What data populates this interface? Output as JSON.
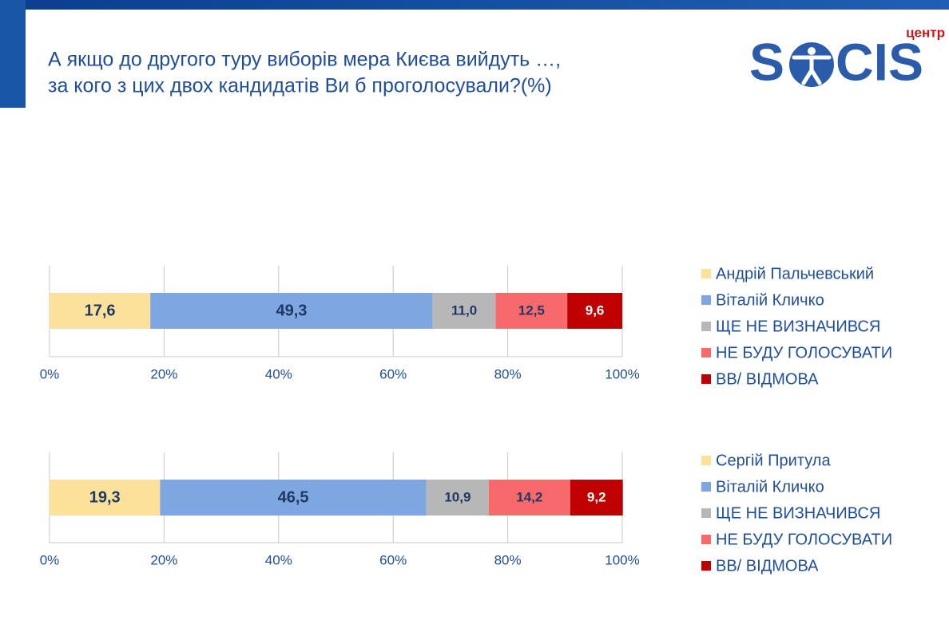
{
  "header": {
    "title_lines": [
      "А якщо до другого туру виборів мера Києва вийдуть …,",
      "за кого з цих двох кандидатів Ви б проголосували?(%)"
    ],
    "logo": {
      "small": "центр",
      "left": "S",
      "right": "CIS"
    }
  },
  "chart_data": [
    {
      "type": "stacked_bar",
      "xlim": [
        0,
        100
      ],
      "grid": true,
      "xticks": [
        {
          "value": 0,
          "label": "0%"
        },
        {
          "value": 20,
          "label": "20%"
        },
        {
          "value": 40,
          "label": "40%"
        },
        {
          "value": 60,
          "label": "60%"
        },
        {
          "value": 80,
          "label": "80%"
        },
        {
          "value": 100,
          "label": "100%"
        }
      ],
      "series": [
        {
          "name": "Андрій Пальчевський",
          "color": "#fbe19a",
          "label_color": "#1f3864",
          "values": [
            17.6
          ],
          "value_labels": [
            "17,6"
          ]
        },
        {
          "name": "Віталій Кличко",
          "color": "#7ea6e0",
          "label_color": "#1f3864",
          "values": [
            49.3
          ],
          "value_labels": [
            "49,3"
          ]
        },
        {
          "name": "ЩЕ НЕ ВИЗНАЧИВСЯ",
          "color": "#b7b7b7",
          "label_color": "#1f3864",
          "values": [
            11.0
          ],
          "value_labels": [
            "11,0"
          ]
        },
        {
          "name": "НЕ БУДУ ГОЛОСУВАТИ",
          "color": "#f8696b",
          "label_color": "#1f3864",
          "values": [
            12.5
          ],
          "value_labels": [
            "12,5"
          ]
        },
        {
          "name": "ВВ/ ВІДМОВА",
          "color": "#c00000",
          "label_color": "#ffffff",
          "values": [
            9.6
          ],
          "value_labels": [
            "9,6"
          ]
        }
      ]
    },
    {
      "type": "stacked_bar",
      "xlim": [
        0,
        100
      ],
      "grid": true,
      "xticks": [
        {
          "value": 0,
          "label": "0%"
        },
        {
          "value": 20,
          "label": "20%"
        },
        {
          "value": 40,
          "label": "40%"
        },
        {
          "value": 60,
          "label": "60%"
        },
        {
          "value": 80,
          "label": "80%"
        },
        {
          "value": 100,
          "label": "100%"
        }
      ],
      "series": [
        {
          "name": "Сергій Притула",
          "color": "#fbe19a",
          "label_color": "#1f3864",
          "values": [
            19.3
          ],
          "value_labels": [
            "19,3"
          ]
        },
        {
          "name": "Віталій Кличко",
          "color": "#7ea6e0",
          "label_color": "#1f3864",
          "values": [
            46.5
          ],
          "value_labels": [
            "46,5"
          ]
        },
        {
          "name": "ЩЕ НЕ ВИЗНАЧИВСЯ",
          "color": "#b7b7b7",
          "label_color": "#1f3864",
          "values": [
            10.9
          ],
          "value_labels": [
            "10,9"
          ]
        },
        {
          "name": "НЕ БУДУ ГОЛОСУВАТИ",
          "color": "#f8696b",
          "label_color": "#1f3864",
          "values": [
            14.2
          ],
          "value_labels": [
            "14,2"
          ]
        },
        {
          "name": "ВВ/ ВІДМОВА",
          "color": "#c00000",
          "label_color": "#ffffff",
          "values": [
            9.2
          ],
          "value_labels": [
            "9,2"
          ]
        }
      ]
    }
  ]
}
